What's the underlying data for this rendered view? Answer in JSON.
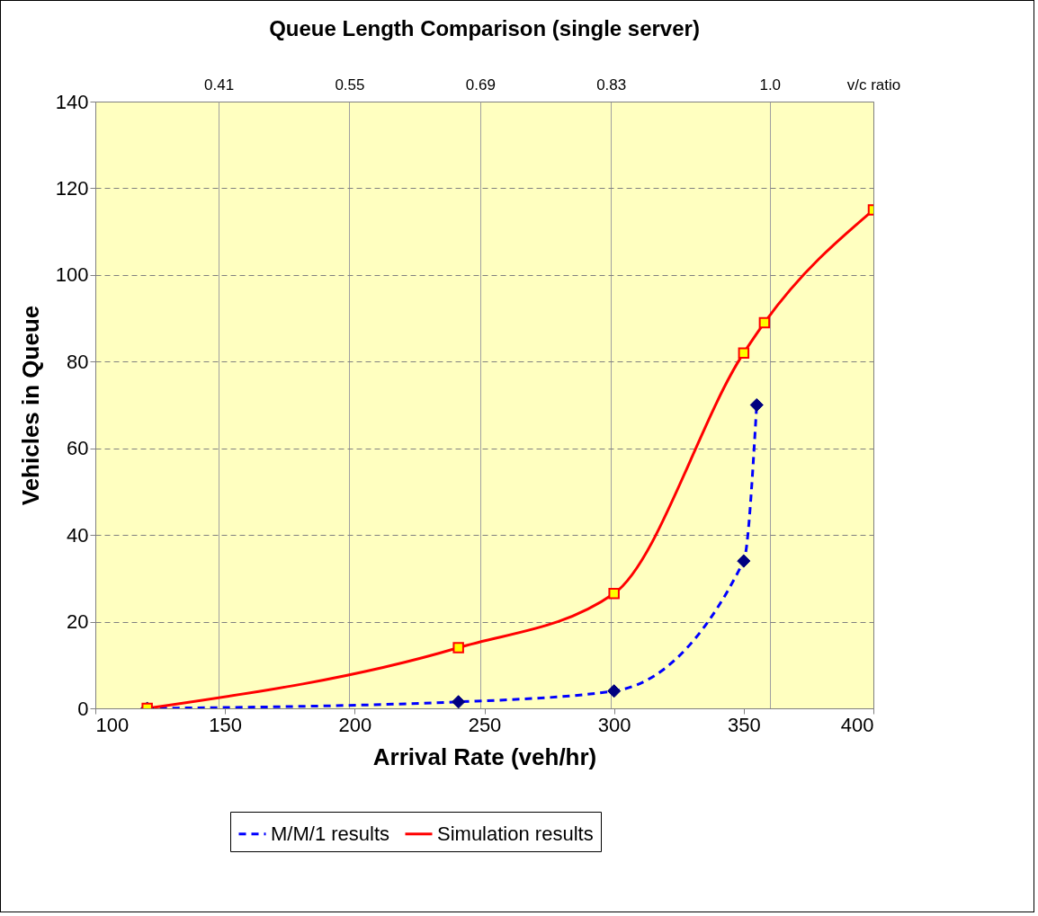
{
  "chart_data": {
    "type": "line",
    "title": "Queue Length Comparison (single server)",
    "xlabel": "Arrival Rate (veh/hr)",
    "ylabel": "Vehicles in Queue",
    "x2label": "v/c ratio",
    "xlim": [
      100,
      400
    ],
    "xticks": [
      100,
      150,
      200,
      250,
      300,
      350,
      400
    ],
    "ylim": [
      0,
      140
    ],
    "yticks": [
      0,
      20,
      40,
      60,
      80,
      100,
      120,
      140
    ],
    "x2lim": [
      0.278,
      1.111
    ],
    "x2ticks": [
      0.41,
      0.55,
      0.69,
      0.83,
      {
        "value": 1,
        "label": "1.0"
      }
    ],
    "grid": true,
    "legend": "bottom",
    "series": [
      {
        "name": "M/M/1 results",
        "color": "#0000ff",
        "line_style": "dashed",
        "marker": "diamond",
        "x": [
          120,
          240,
          300,
          350,
          355
        ],
        "values": [
          0,
          1.5,
          4,
          34,
          70
        ]
      },
      {
        "name": "Simulation results",
        "color": "#ff0000",
        "line_style": "solid",
        "marker": "square",
        "x": [
          120,
          240,
          300,
          350,
          358,
          400
        ],
        "values": [
          0,
          14,
          26.5,
          82,
          89,
          115
        ]
      }
    ]
  }
}
